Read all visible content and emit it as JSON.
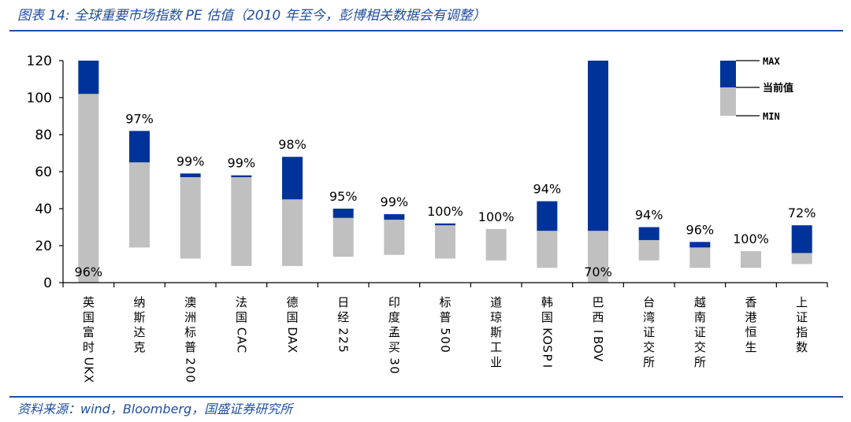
{
  "title": "图表 14:  全球重要市场指数 PE 估值（2010 年至今，彭博相关数据会有调整）",
  "source": "资料来源：wind，Bloomberg，国盛证券研究所",
  "colors": {
    "max_segment": "#003399",
    "min_segment": "#c0c0c0",
    "axis": "#000000",
    "rule": "#1f4e9e"
  },
  "chart_data": {
    "type": "bar",
    "subtype": "floating-range",
    "ylim": [
      0,
      120
    ],
    "yticks": [
      0,
      20,
      40,
      60,
      80,
      100,
      120
    ],
    "grid": false,
    "legend": {
      "position": "top-right",
      "max_label": "MAX",
      "current_label": "当前值",
      "min_label": "MIN"
    },
    "categories": [
      "英国富时UKX",
      "纳斯达克",
      "澳洲标普200",
      "法国CAC",
      "德国DAX",
      "日经225",
      "印度孟买30",
      "标普500",
      "道琼斯工业",
      "韩国KOSPI",
      "巴西IBOV",
      "台湾证交所",
      "越南证交所",
      "香港恒生",
      "上证指数"
    ],
    "min": [
      0,
      19,
      13,
      9,
      9,
      14,
      15,
      13,
      12,
      8,
      0,
      12,
      8,
      8,
      10
    ],
    "current": [
      102,
      65,
      57,
      57,
      45,
      35,
      34,
      31,
      29,
      28,
      28,
      23,
      19,
      17,
      16
    ],
    "max": [
      120,
      82,
      59,
      58,
      68,
      40,
      37,
      32,
      29,
      44,
      120,
      30,
      22,
      17,
      31
    ],
    "percentiles": [
      "96%",
      "97%",
      "99%",
      "99%",
      "98%",
      "95%",
      "99%",
      "100%",
      "100%",
      "94%",
      "70%",
      "94%",
      "96%",
      "100%",
      "72%"
    ]
  }
}
